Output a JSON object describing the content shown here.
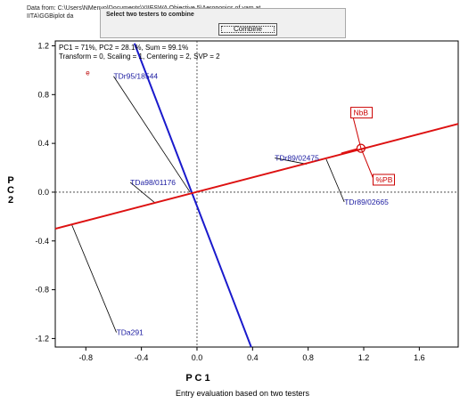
{
  "header": {
    "line1": "Data from: C:\\Users\\NMenvo\\Documents\\YIIESWA Objective 5\\Aeroponics of yam at",
    "line2": "IITA\\GGBiplot da"
  },
  "dialog": {
    "title": "Select two testers to combine",
    "button_label": "Combine"
  },
  "chart_data": {
    "type": "scatter",
    "info_line1": "PC1 = 71%, PC2 = 28.1%, Sum = 99.1%",
    "info_line2": "Transform = 0, Scaling = 1, Centering = 2, SVP = 2",
    "xlabel": "P C 1",
    "ylabel": "P C 2",
    "caption": "Entry evaluation based on two testers",
    "xlim": [
      -1.02,
      1.88
    ],
    "ylim": [
      -1.27,
      1.24
    ],
    "x_ticks": [
      "-0.8",
      "-0.4",
      "0.0",
      "0.4",
      "0.8",
      "1.2",
      "1.6"
    ],
    "x_tick_values": [
      -0.8,
      -0.4,
      0.0,
      0.4,
      0.8,
      1.2,
      1.6
    ],
    "y_ticks": [
      "1.2",
      "0.8",
      "0.4",
      "0.0",
      "-0.4",
      "-0.8",
      "-1.2"
    ],
    "y_tick_values": [
      1.2,
      0.8,
      0.4,
      0.0,
      -0.4,
      -0.8,
      -1.2
    ],
    "marker": {
      "label": "e",
      "x": -0.8,
      "y": 0.98
    },
    "aec_axis": {
      "x1": -1.02,
      "y1": -0.3,
      "x2": 1.88,
      "y2": 0.56
    },
    "perpendicular": {
      "x1": -0.45,
      "y1": 1.22,
      "x2": 0.39,
      "y2": -1.27
    },
    "ideal": {
      "x": 1.18,
      "y": 0.36
    },
    "testers": [
      {
        "label": "NbB",
        "lx": 1.12,
        "ly": 0.63,
        "x": 1.18,
        "y": 0.36
      },
      {
        "label": "%PB",
        "lx": 1.28,
        "ly": 0.08,
        "x": 1.18,
        "y": 0.36
      }
    ],
    "entries": [
      {
        "label": "TDr95/18544",
        "x": -0.6,
        "y": 0.95,
        "px": -0.05,
        "py": 0.0
      },
      {
        "label": "TDa98/01176",
        "x": -0.48,
        "y": 0.08,
        "px": -0.3,
        "py": -0.09
      },
      {
        "label": "TDr89/02475",
        "x": 0.56,
        "y": 0.28,
        "px": 0.79,
        "py": 0.23
      },
      {
        "label": "TDr89/02665",
        "x": 1.06,
        "y": -0.08,
        "px": 0.93,
        "py": 0.27
      },
      {
        "label": "TDa291",
        "x": -0.58,
        "y": -1.15,
        "px": -0.9,
        "py": -0.27
      }
    ],
    "colors": {
      "aec": "#dd1111",
      "perp": "#1a1acc",
      "entry": "#1a1aa0",
      "tester": "#cc0000"
    }
  }
}
